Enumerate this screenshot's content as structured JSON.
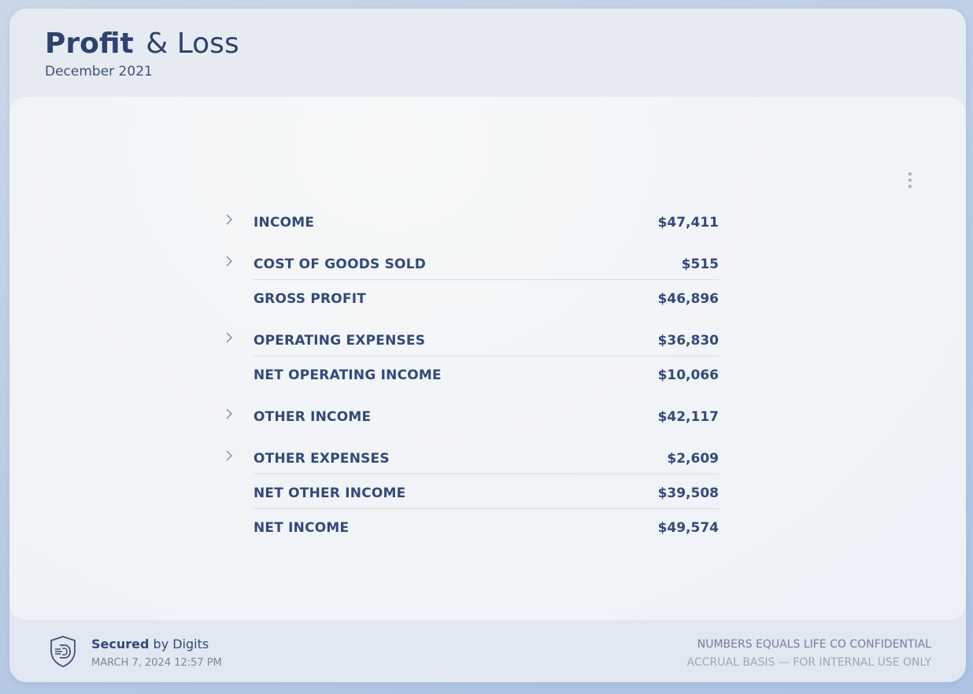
{
  "header": {
    "title_bold": "Profit",
    "title_light": "& Loss",
    "period": "December 2021"
  },
  "report": {
    "menu_icon": "more-vertical-icon",
    "rows": [
      {
        "label": "INCOME",
        "amount": "$47,411",
        "expandable": true
      },
      {
        "label": "COST OF GOODS SOLD",
        "amount": "$515",
        "expandable": true
      },
      {
        "label": "GROSS PROFIT",
        "amount": "$46,896",
        "expandable": false
      },
      {
        "label": "OPERATING EXPENSES",
        "amount": "$36,830",
        "expandable": true
      },
      {
        "label": "NET OPERATING INCOME",
        "amount": "$10,066",
        "expandable": false
      },
      {
        "label": "OTHER INCOME",
        "amount": "$42,117",
        "expandable": true
      },
      {
        "label": "OTHER EXPENSES",
        "amount": "$2,609",
        "expandable": true
      },
      {
        "label": "NET OTHER INCOME",
        "amount": "$39,508",
        "expandable": false
      },
      {
        "label": "NET INCOME",
        "amount": "$49,574",
        "expandable": false
      }
    ]
  },
  "footer": {
    "secured_bold": "Secured",
    "secured_rest": "by Digits",
    "timestamp": "MARCH 7, 2024 12:57 PM",
    "confidential": "NUMBERS EQUALS LIFE CO CONFIDENTIAL",
    "basis": "ACCRUAL BASIS — FOR INTERNAL USE ONLY",
    "logo_icon": "digits-shield-icon"
  },
  "colors": {
    "primary_text": "#34497a",
    "title_text": "#2d4271",
    "muted_text": "#7a869f",
    "divider": "#d6dbe2"
  }
}
